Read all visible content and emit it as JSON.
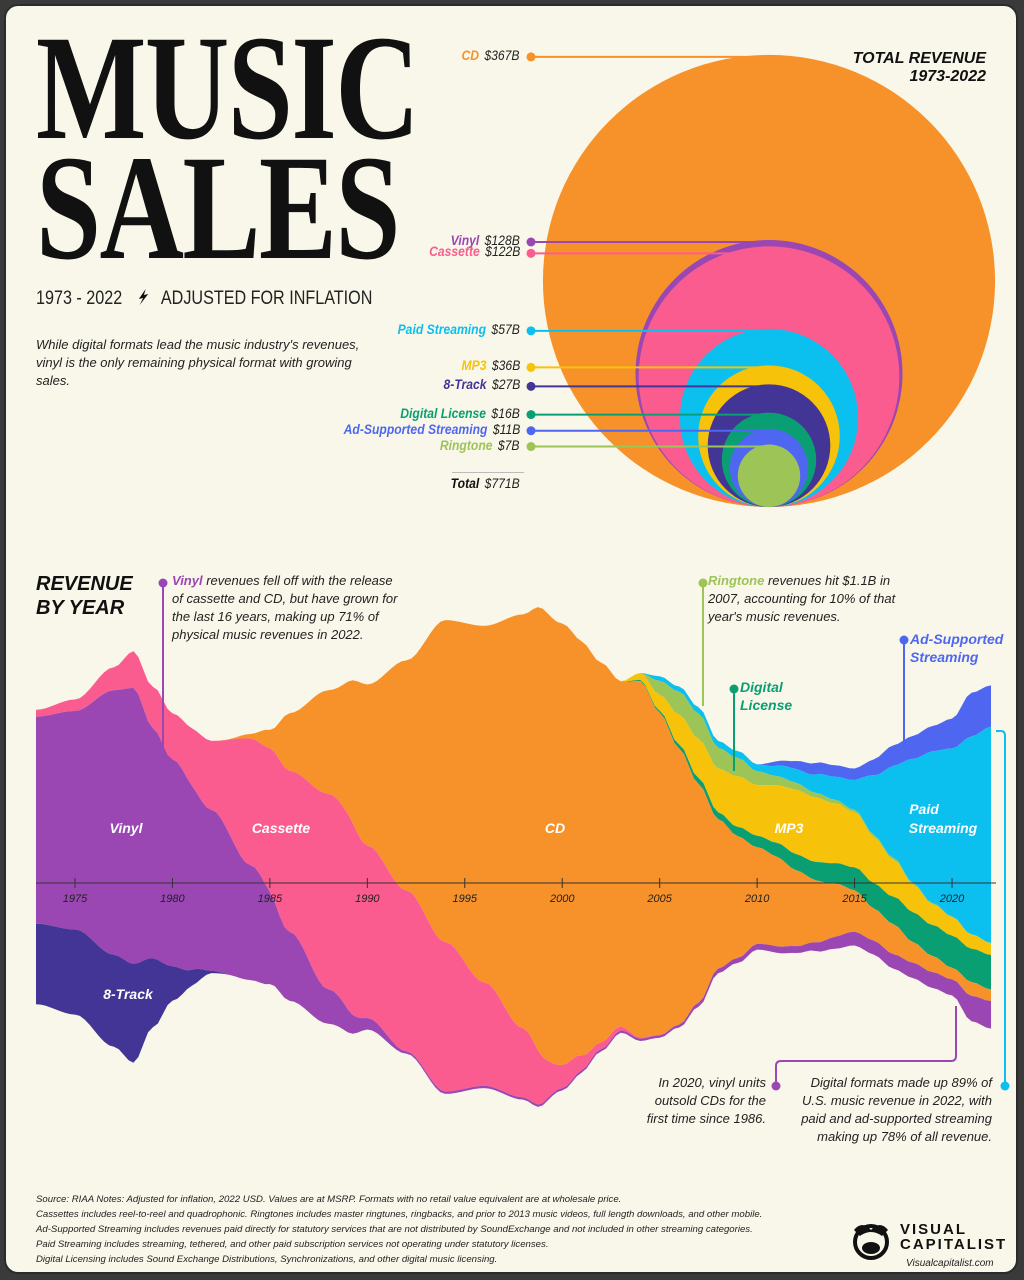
{
  "header": {
    "title_line1": "MUSIC",
    "title_line2": "SALES",
    "subtitle": "1973 - 2022",
    "subtitle_tag": "ADJUSTED FOR INFLATION",
    "intro": "While digital formats lead the music industry's revenues, vinyl is the only remaining physical format with growing sales."
  },
  "colors": {
    "CD": "#f7922a",
    "Vinyl": "#9b47b3",
    "Cassette": "#fb5c8f",
    "Paid Streaming": "#0bc0ef",
    "MP3": "#f7c20a",
    "8-Track": "#433595",
    "Digital License": "#0a9f72",
    "Ad-Supported Streaming": "#4f67f0",
    "Ringtone": "#9cc457",
    "background": "#f9f7e9"
  },
  "total_revenue": {
    "title_line1": "TOTAL REVENUE",
    "title_line2": "1973-2022",
    "items": [
      {
        "name": "CD",
        "label": "$367B",
        "value": 367
      },
      {
        "name": "Vinyl",
        "label": "$128B",
        "value": 128
      },
      {
        "name": "Cassette",
        "label": "$122B",
        "value": 122
      },
      {
        "name": "Paid Streaming",
        "label": "$57B",
        "value": 57
      },
      {
        "name": "MP3",
        "label": "$36B",
        "value": 36
      },
      {
        "name": "8-Track",
        "label": "$27B",
        "value": 27
      },
      {
        "name": "Digital License",
        "label": "$16B",
        "value": 16
      },
      {
        "name": "Ad-Supported Streaming",
        "label": "$11B",
        "value": 11
      },
      {
        "name": "Ringtone",
        "label": "$7B",
        "value": 7
      }
    ],
    "total_label": "Total",
    "total_value": "$771B"
  },
  "revenue_by_year": {
    "title_line1": "REVENUE",
    "title_line2": "BY YEAR",
    "stream_labels": {
      "vinyl": "Vinyl",
      "cassette": "Cassette",
      "cd": "CD",
      "mp3": "MP3",
      "paid1": "Paid",
      "paid2": "Streaming",
      "eight": "8-Track"
    },
    "annotations": {
      "vinyl_key": "Vinyl",
      "vinyl_text": " revenues fell off with the release of cassette and CD, but have grown for the last 16 years, making up 71% of physical music revenues in 2022.",
      "ringtone_key": "Ringtone",
      "ringtone_text": " revenues hit $1.1B in 2007, accounting for 10% of that year's music revenues.",
      "digital_license_1": "Digital",
      "digital_license_2": "License",
      "ad_supported_1": "Ad-Supported",
      "ad_supported_2": "Streaming",
      "vinyl_2020": "In 2020, vinyl units outsold CDs for the first time since 1986.",
      "digital_2022": "Digital formats made up 89% of U.S. music revenue in 2022, with paid and ad-supported streaming making up 78% of all revenue."
    }
  },
  "chart_data": {
    "type": "area",
    "subtype": "streamgraph",
    "unit": "USD billions (2022, inflation adjusted), approximate",
    "x_ticks": [
      1975,
      1980,
      1985,
      1990,
      1995,
      2000,
      2005,
      2010,
      2015,
      2020
    ],
    "xlim": [
      1973,
      2022
    ],
    "series": [
      {
        "name": "Ad-Supported Streaming",
        "points": {
          "2010": 0,
          "2011": 0.2,
          "2013": 0.5,
          "2015": 0.5,
          "2017": 0.9,
          "2019": 1.1,
          "2020": 1.3,
          "2021": 1.9,
          "2022": 1.8
        }
      },
      {
        "name": "Paid Streaming",
        "points": {
          "2004": 0,
          "2005": 0.2,
          "2008": 0.3,
          "2010": 0.3,
          "2012": 0.6,
          "2014": 1.0,
          "2015": 1.3,
          "2016": 2.6,
          "2017": 4.0,
          "2018": 5.4,
          "2019": 6.6,
          "2020": 7.3,
          "2021": 8.6,
          "2022": 9.4
        }
      },
      {
        "name": "Ringtone",
        "points": {
          "2004": 0,
          "2005": 0.6,
          "2006": 1.0,
          "2007": 1.1,
          "2008": 0.9,
          "2009": 0.8,
          "2010": 0.6,
          "2011": 0.4,
          "2012": 0.3,
          "2013": 0.2,
          "2015": 0.1,
          "2022": 0.02
        }
      },
      {
        "name": "MP3",
        "points": {
          "2003": 0,
          "2004": 0.3,
          "2005": 0.7,
          "2006": 1.3,
          "2007": 1.7,
          "2008": 1.9,
          "2009": 2.2,
          "2010": 2.2,
          "2011": 2.5,
          "2012": 2.8,
          "2013": 2.8,
          "2014": 2.6,
          "2015": 2.4,
          "2016": 2.0,
          "2017": 1.6,
          "2018": 1.2,
          "2019": 0.9,
          "2020": 0.8,
          "2021": 0.6,
          "2022": 0.5
        }
      },
      {
        "name": "Digital License",
        "points": {
          "2003": 0,
          "2004": 0.05,
          "2008": 0.3,
          "2010": 0.5,
          "2012": 0.7,
          "2014": 0.9,
          "2016": 1.1,
          "2018": 1.3,
          "2020": 1.4,
          "2022": 1.5
        }
      },
      {
        "name": "CD",
        "points": {
          "1982": 0,
          "1983": 0.03,
          "1984": 0.2,
          "1985": 0.8,
          "1986": 2.5,
          "1988": 4.5,
          "1990": 7,
          "1992": 10,
          "1994": 14,
          "1996": 15.5,
          "1998": 18,
          "1999": 19.5,
          "2000": 19.2,
          "2001": 18,
          "2002": 16.5,
          "2003": 15,
          "2004": 15.5,
          "2005": 14,
          "2006": 12,
          "2007": 9.5,
          "2008": 6.5,
          "2009": 5.3,
          "2010": 4.2,
          "2011": 3.9,
          "2012": 3.3,
          "2013": 2.7,
          "2014": 2.3,
          "2015": 1.8,
          "2016": 1.4,
          "2017": 1.3,
          "2018": 0.9,
          "2019": 0.7,
          "2020": 0.5,
          "2021": 0.6,
          "2022": 0.5
        }
      },
      {
        "name": "Cassette",
        "points": {
          "1973": 0.3,
          "1975": 0.5,
          "1977": 1.0,
          "1978": 1.6,
          "1980": 2,
          "1982": 3,
          "1984": 5.5,
          "1986": 7,
          "1988": 8.5,
          "1989": 8.5,
          "1990": 7.5,
          "1992": 7,
          "1994": 6.5,
          "1996": 4.5,
          "1998": 3,
          "2000": 1,
          "2002": 0.3,
          "2004": 0.05,
          "2006": 0
        }
      },
      {
        "name": "Vinyl",
        "points": {
          "1973": 9.0,
          "1975": 9.5,
          "1977": 11.5,
          "1978": 12,
          "1979": 10,
          "1980": 9,
          "1982": 7,
          "1984": 5,
          "1986": 3,
          "1988": 1.5,
          "1990": 0.5,
          "1992": 0.1,
          "2005": 0.1,
          "2008": 0.2,
          "2012": 0.3,
          "2015": 0.6,
          "2020": 0.7,
          "2021": 1.1,
          "2022": 1.2
        }
      },
      {
        "name": "8-Track",
        "points": {
          "1973": 3.5,
          "1975": 3.7,
          "1977": 4.0,
          "1978": 4.3,
          "1979": 3,
          "1980": 1.5,
          "1981": 0.7,
          "1982": 0.1,
          "1983": 0
        }
      }
    ]
  },
  "footer": {
    "notes": [
      "Source: RIAA Notes: Adjusted for inflation, 2022 USD. Values are at MSRP. Formats with no retail value equivalent are at wholesale price.",
      "Cassettes includes reel-to-reel and quadrophonic. Ringtones includes master ringtunes, ringbacks, and prior to 2013 music videos, full length downloads, and other mobile.",
      "Ad-Supported Streaming includes revenues paid directly for statutory services that are not distributed by SoundExchange and not included in other streaming categories.",
      "Paid Streaming includes streaming, tethered, and other paid subscription services not operating under statutory licenses.",
      "Digital Licensing includes Sound Exchange Distributions, Synchronizations, and other digital music licensing."
    ],
    "brand_line1": "VISUAL",
    "brand_line2": "CAPITALIST",
    "url": "Visualcapitalist.com"
  }
}
